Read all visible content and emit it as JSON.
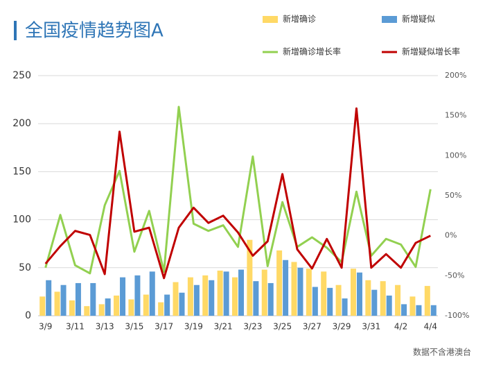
{
  "chart_data": {
    "type": "bar",
    "title": "全国疫情趋势图A",
    "note": "数据不含港澳台",
    "categories": [
      "3/9",
      null,
      "3/11",
      null,
      "3/13",
      null,
      "3/15",
      null,
      "3/17",
      null,
      "3/19",
      null,
      "3/21",
      null,
      "3/23",
      null,
      "3/25",
      null,
      "3/27",
      null,
      "3/29",
      null,
      "3/31",
      null,
      "4/2",
      null,
      "4/4"
    ],
    "series": [
      {
        "name": "新增确诊",
        "type": "bar",
        "color": "#ffd966",
        "values": [
          20,
          25,
          16,
          10,
          12,
          21,
          17,
          22,
          14,
          35,
          40,
          42,
          47,
          40,
          79,
          48,
          68,
          56,
          49,
          46,
          32,
          49,
          37,
          36,
          32,
          20,
          31
        ]
      },
      {
        "name": "新增疑似",
        "type": "bar",
        "color": "#5b9bd5",
        "values": [
          37,
          32,
          34,
          34,
          18,
          40,
          42,
          46,
          22,
          24,
          32,
          37,
          46,
          48,
          36,
          34,
          58,
          50,
          30,
          29,
          18,
          45,
          27,
          21,
          12,
          11,
          11
        ]
      },
      {
        "name": "新增确诊增长率",
        "type": "line",
        "axis": "y2",
        "color": "#92d050",
        "values": [
          -40,
          26,
          -37,
          -47,
          38,
          81,
          -20,
          31,
          -45,
          161,
          15,
          6,
          13,
          -14,
          99,
          -38,
          42,
          -14,
          -2,
          -15,
          -33,
          55,
          -25,
          -4,
          -11,
          -39,
          58
        ]
      },
      {
        "name": "新增疑似增长率",
        "type": "line",
        "axis": "y2",
        "color": "#c00000",
        "values": [
          -35,
          -13,
          6,
          1,
          -48,
          130,
          5,
          10,
          -53,
          10,
          35,
          16,
          25,
          4,
          -25,
          -7,
          77,
          -17,
          -41,
          -4,
          -40,
          159,
          -40,
          -23,
          -40,
          -9,
          0
        ]
      }
    ],
    "ylim": [
      0,
      250
    ],
    "yticks": [
      0,
      50,
      100,
      150,
      200,
      250
    ],
    "y2lim": [
      -100,
      200
    ],
    "y2ticks": [
      {
        "value": -100,
        "label": "-100%"
      },
      {
        "value": -50,
        "label": "-50%"
      },
      {
        "value": 0,
        "label": "0%"
      },
      {
        "value": 50,
        "label": "50%"
      },
      {
        "value": 100,
        "label": "100%"
      },
      {
        "value": 150,
        "label": "150%"
      },
      {
        "value": 200,
        "label": "200%"
      }
    ],
    "grid": true
  }
}
